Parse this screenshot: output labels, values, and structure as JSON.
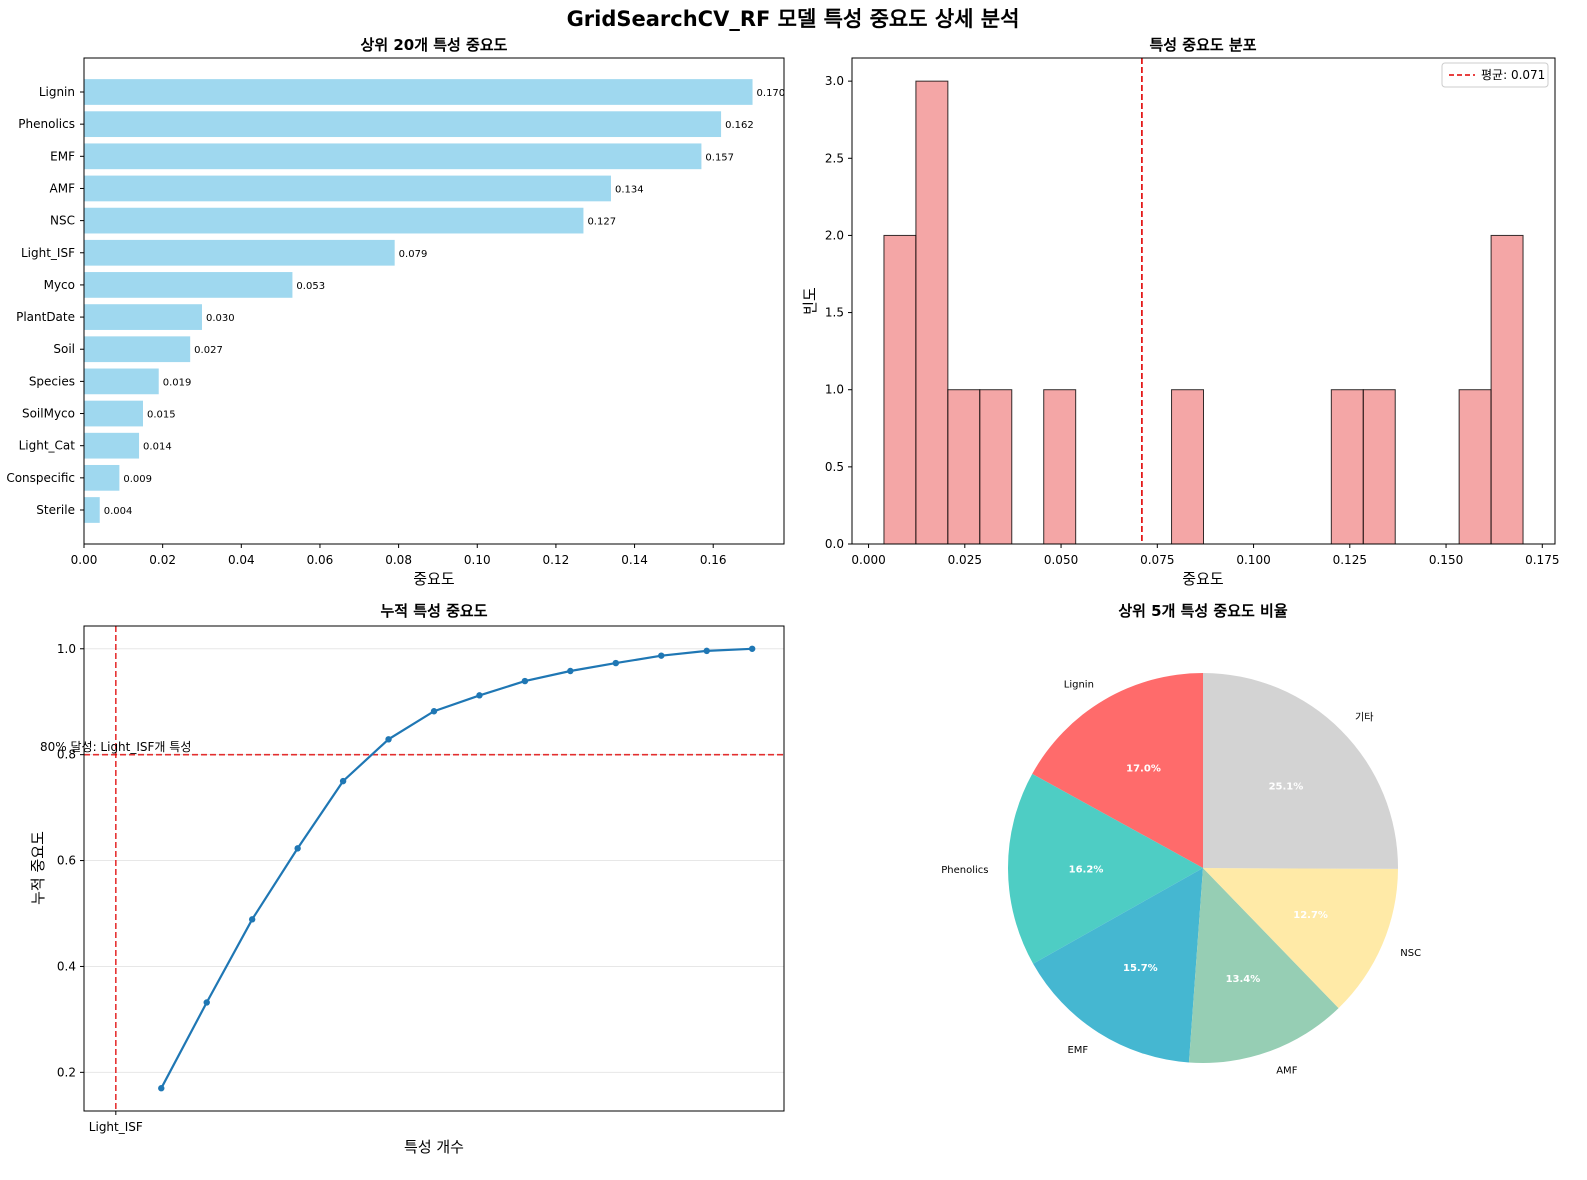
{
  "figure": {
    "title": "GridSearchCV_RF 모델 특성 중요도 상세 분석"
  },
  "chart_data": [
    {
      "type": "bar",
      "orientation": "horizontal",
      "title": "상위 20개 특성 중요도",
      "xlabel": "중요도",
      "ylabel": "",
      "categories": [
        "Lignin",
        "Phenolics",
        "EMF",
        "AMF",
        "NSC",
        "Light_ISF",
        "Myco",
        "PlantDate",
        "Soil",
        "Species",
        "SoilMyco",
        "Light_Cat",
        "Conspecific",
        "Sterile"
      ],
      "values": [
        0.17,
        0.162,
        0.157,
        0.134,
        0.127,
        0.079,
        0.053,
        0.03,
        0.027,
        0.019,
        0.015,
        0.014,
        0.009,
        0.004
      ],
      "value_labels": [
        "0.170",
        "0.162",
        "0.157",
        "0.134",
        "0.127",
        "0.079",
        "0.053",
        "0.030",
        "0.027",
        "0.019",
        "0.015",
        "0.014",
        "0.009",
        "0.004"
      ],
      "xlim": [
        0,
        0.178
      ],
      "xticks": [
        0.0,
        0.02,
        0.04,
        0.06,
        0.08,
        0.1,
        0.12,
        0.14,
        0.16
      ],
      "xtick_labels": [
        "0.00",
        "0.02",
        "0.04",
        "0.06",
        "0.08",
        "0.10",
        "0.12",
        "0.14",
        "0.16"
      ],
      "color": "#87ceeb"
    },
    {
      "type": "histogram",
      "title": "특성 중요도 분포",
      "xlabel": "중요도",
      "ylabel": "빈도",
      "bin_range": [
        0.004,
        0.17
      ],
      "bins": 20,
      "counts": [
        2,
        3,
        1,
        1,
        0,
        1,
        0,
        0,
        0,
        1,
        0,
        0,
        0,
        0,
        1,
        1,
        0,
        0,
        1,
        2
      ],
      "xlim": [
        -0.0043,
        0.1783
      ],
      "ylim": [
        0,
        3.15
      ],
      "xticks": [
        0.0,
        0.025,
        0.05,
        0.075,
        0.1,
        0.125,
        0.15,
        0.175
      ],
      "xtick_labels": [
        "0.000",
        "0.025",
        "0.050",
        "0.075",
        "0.100",
        "0.125",
        "0.150",
        "0.175"
      ],
      "yticks": [
        0.0,
        0.5,
        1.0,
        1.5,
        2.0,
        2.5,
        3.0
      ],
      "ytick_labels": [
        "0.0",
        "0.5",
        "1.0",
        "1.5",
        "2.0",
        "2.5",
        "3.0"
      ],
      "mean_value": 0.071,
      "legend_label": "평균: 0.071",
      "legend_position": "top-right",
      "color": "#f08080",
      "mean_color": "#e00000"
    },
    {
      "type": "line",
      "title": "누적 특성 중요도",
      "xlabel": "특성 개수",
      "ylabel": "누적 중요도",
      "x": [
        1,
        2,
        3,
        4,
        5,
        6,
        7,
        8,
        9,
        10,
        11,
        12,
        13,
        14
      ],
      "y": [
        0.17,
        0.332,
        0.489,
        0.623,
        0.75,
        0.829,
        0.882,
        0.912,
        0.939,
        0.958,
        0.973,
        0.987,
        0.996,
        1.0
      ],
      "xlim": [
        -0.7,
        14.7
      ],
      "ylim": [
        0.127,
        1.043
      ],
      "yticks": [
        0.2,
        0.4,
        0.6,
        0.8,
        1.0
      ],
      "ytick_labels": [
        "0.2",
        "0.4",
        "0.6",
        "0.8",
        "1.0"
      ],
      "xtick_values": [
        0
      ],
      "xtick_labels": [
        "Light_ISF"
      ],
      "threshold_y": 0.8,
      "threshold_x": 0,
      "annotation": "80% 달성: Light_ISF개 특성",
      "grid": true,
      "color": "#1f77b4",
      "ref_color": "#e00000"
    },
    {
      "type": "pie",
      "title": "상위 5개 특성 중요도 비율",
      "labels": [
        "Lignin",
        "Phenolics",
        "EMF",
        "AMF",
        "NSC",
        "기타"
      ],
      "values": [
        17.0,
        16.2,
        15.7,
        13.4,
        12.7,
        25.1
      ],
      "pct_labels": [
        "17.0%",
        "16.2%",
        "15.7%",
        "13.4%",
        "12.7%",
        "25.1%"
      ],
      "colors": [
        "#ff6b6b",
        "#4ecdc4",
        "#45b7d1",
        "#96ceb4",
        "#ffeaa7",
        "#d3d3d3"
      ],
      "start_angle": 90,
      "direction": "counterclockwise"
    }
  ]
}
